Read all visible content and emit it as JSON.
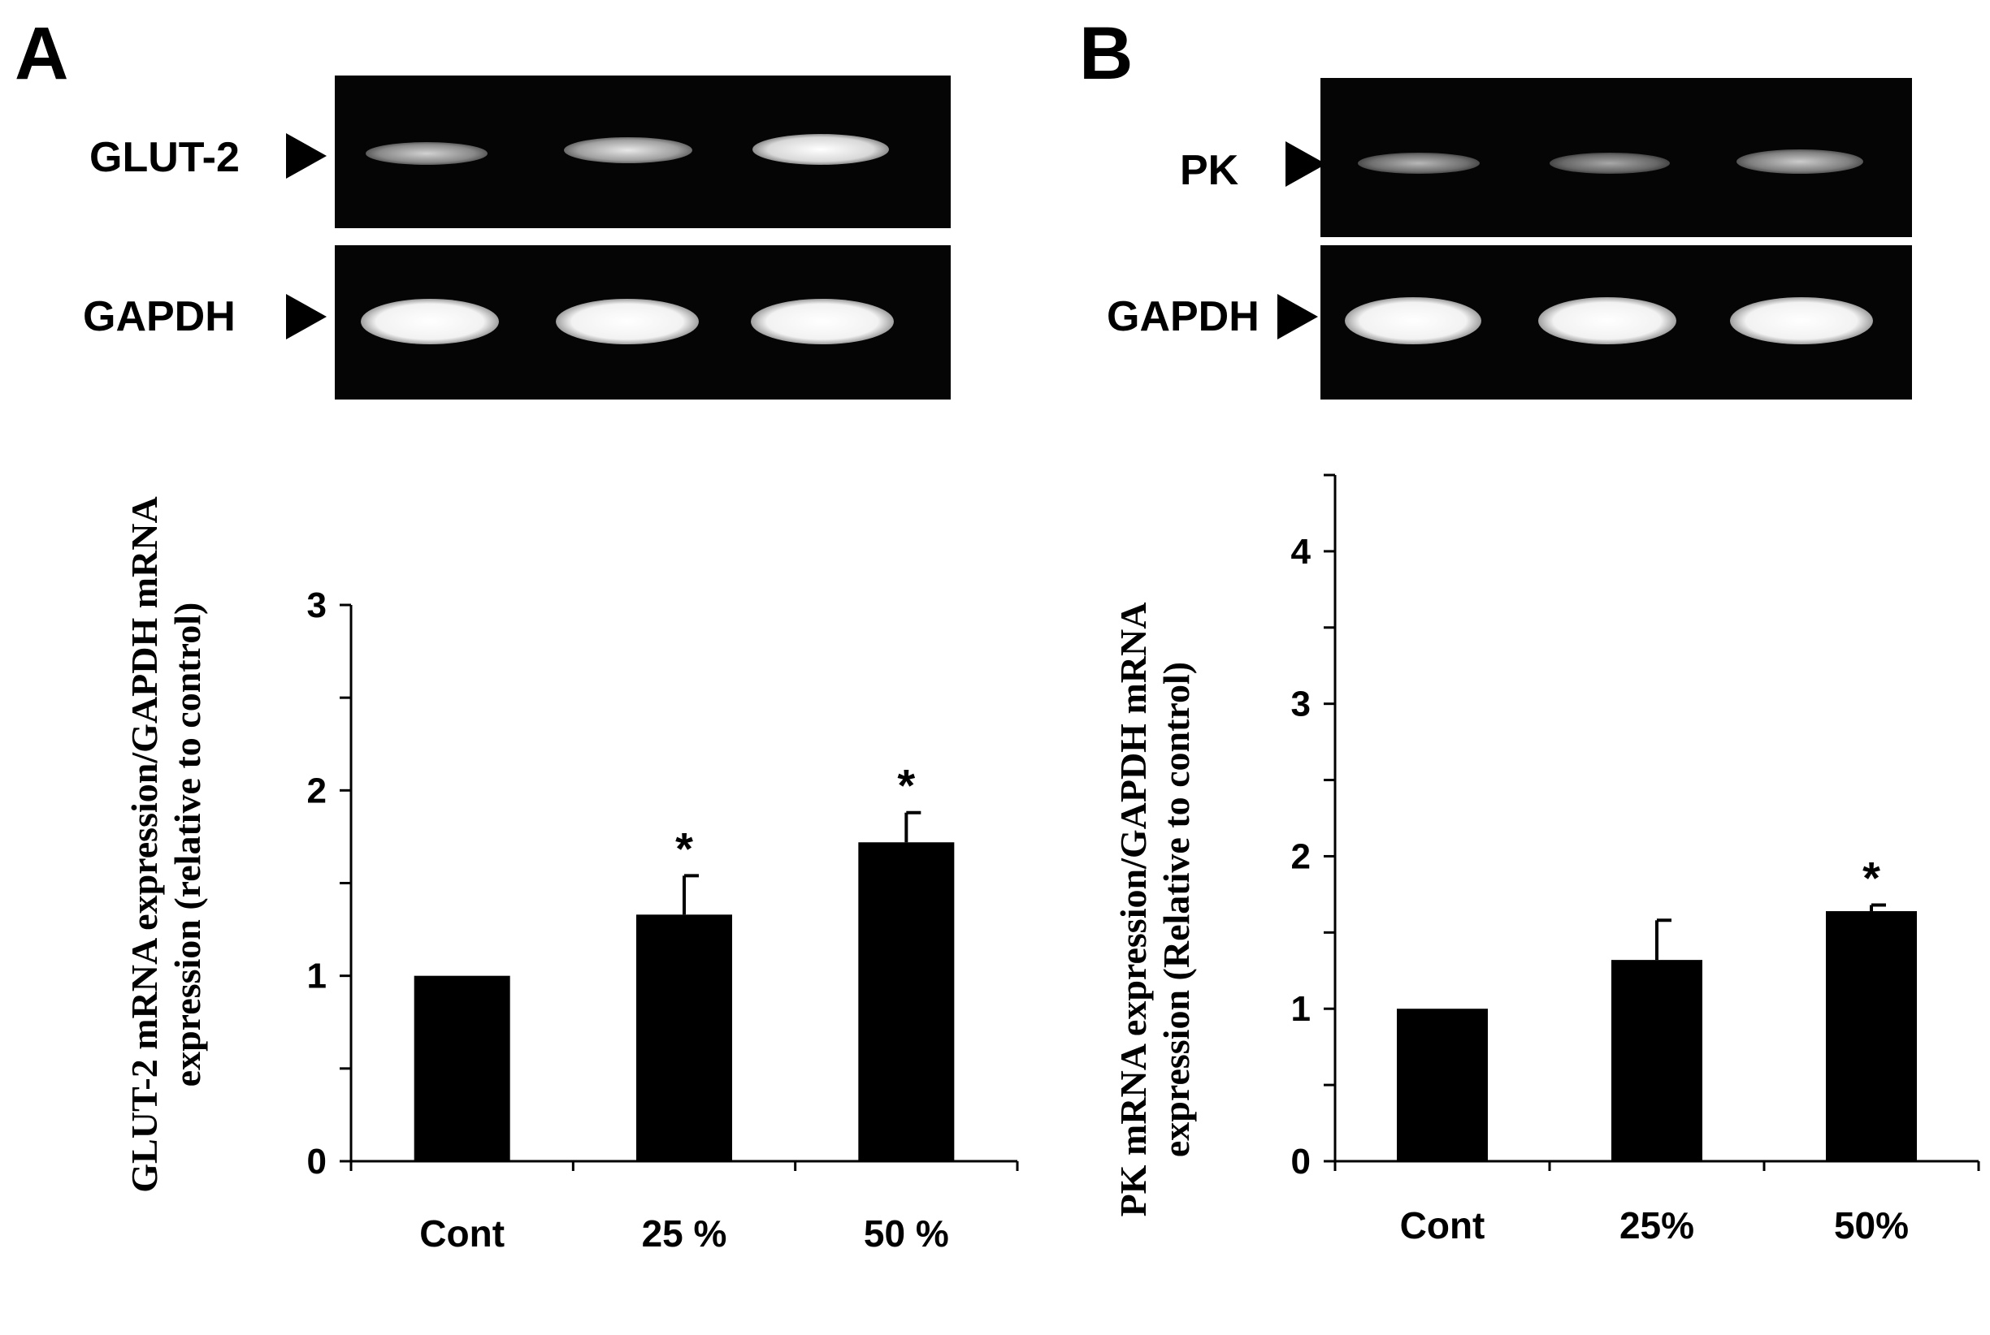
{
  "panels": [
    {
      "letter": "A",
      "gel": {
        "target_label": "GLUT-2",
        "control_label": "GAPDH"
      },
      "ylabel_line1": "GLUT-2 mRNA expression/GAPDH mRNA",
      "ylabel_line2": "expression (relative to control)"
    },
    {
      "letter": "B",
      "gel": {
        "target_label": "PK",
        "control_label": "GAPDH"
      },
      "ylabel_line1": "PK mRNA expression/GAPDH mRNA",
      "ylabel_line2": "expression (Relative to control)"
    }
  ],
  "chart_data": [
    {
      "type": "bar",
      "categories": [
        "Cont",
        "25 %",
        "50 %"
      ],
      "values": [
        1.0,
        1.33,
        1.72
      ],
      "errors": [
        0,
        0.21,
        0.16
      ],
      "significance": [
        "",
        "*",
        "*"
      ],
      "yticks": [
        "0",
        "1",
        "2",
        "3"
      ],
      "ylim": [
        0,
        3
      ],
      "ylabel": "GLUT-2 mRNA expression/GAPDH mRNA expression (relative to control)",
      "bar_color": "#000000",
      "grid": false
    },
    {
      "type": "bar",
      "categories": [
        "Cont",
        "25%",
        "50%"
      ],
      "values": [
        1.0,
        1.32,
        1.64
      ],
      "errors": [
        0,
        0.26,
        0.04
      ],
      "significance": [
        "",
        "",
        "*"
      ],
      "yticks": [
        "0",
        "1",
        "2",
        "3",
        "4"
      ],
      "ylim": [
        0,
        4.5
      ],
      "ylabel": "PK mRNA expression/GAPDH mRNA expression (Relative to control)",
      "bar_color": "#000000",
      "grid": false
    }
  ]
}
